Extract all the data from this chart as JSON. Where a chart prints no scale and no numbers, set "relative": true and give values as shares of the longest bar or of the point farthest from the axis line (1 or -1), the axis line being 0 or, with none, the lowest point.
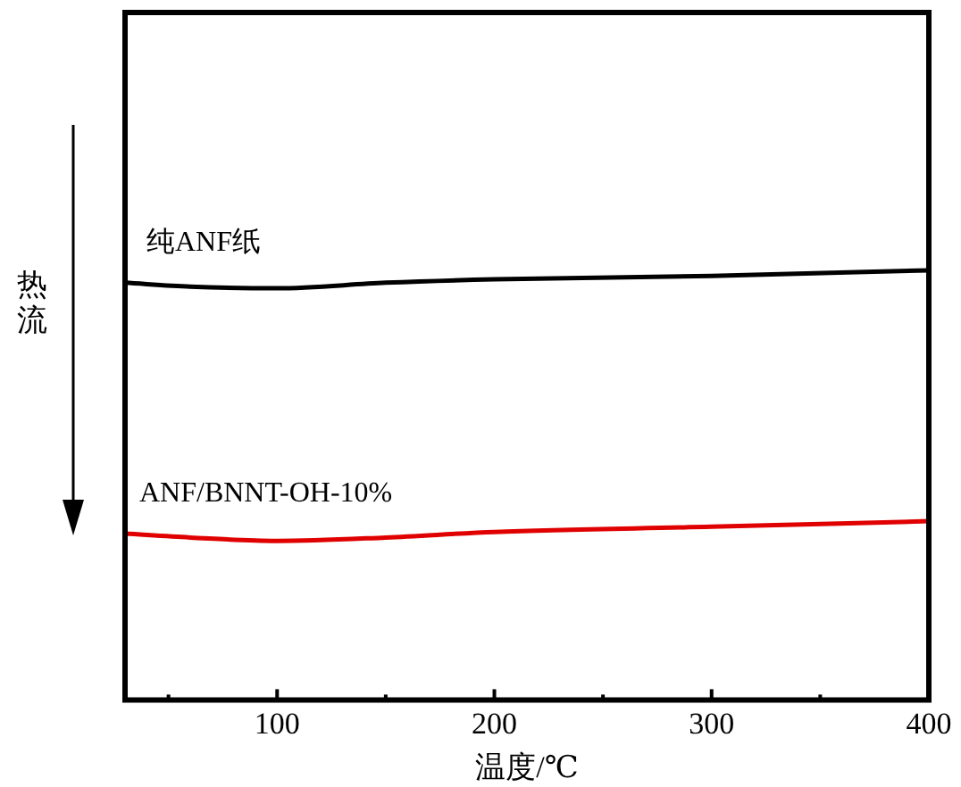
{
  "chart_data": {
    "type": "line",
    "relative": true,
    "xlabel": "温度/℃",
    "ylabel": "热流",
    "xlim": [
      30,
      400
    ],
    "xticks": [
      {
        "value": 50,
        "label": null
      },
      100,
      {
        "value": 150,
        "label": null
      },
      200,
      {
        "value": 250,
        "label": null
      },
      300,
      {
        "value": 350,
        "label": null
      },
      400
    ],
    "x": [
      30,
      60,
      100,
      150,
      200,
      300,
      400
    ],
    "legend": false,
    "grid": false,
    "marker": "none",
    "line_style": "solid",
    "tick_labels": "x",
    "series": [
      {
        "name": "纯ANF纸",
        "color": "#000000",
        "values": [
          0.971,
          0.962,
          0.958,
          0.971,
          0.979,
          0.987,
          1
        ]
      },
      {
        "name": "ANF/BNNT-OH-10%",
        "color": "#e00000",
        "values": [
          0.387,
          0.378,
          0.37,
          0.378,
          0.391,
          0.403,
          0.416
        ]
      }
    ]
  }
}
